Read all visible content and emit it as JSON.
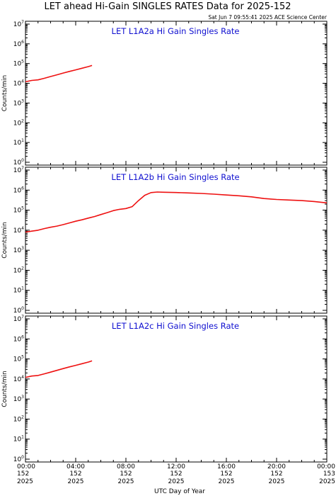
{
  "title": "LET ahead Hi-Gain SINGLES RATES Data for 2025-152",
  "timestamp": "Sat Jun  7 09:55:41 2025 ACE Science Center",
  "x_axis_label": "UTC Day of Year",
  "colors": {
    "series": "#ee1111",
    "panel_title": "#1010d0",
    "axes": "#000000"
  },
  "chart_data": [
    {
      "type": "line",
      "title": "LET L1A2a Hi Gain Singles Rate",
      "ylabel": "Counts/min",
      "yscale": "log",
      "ylim": [
        1,
        10000000
      ],
      "xlim": [
        0,
        24
      ],
      "x_unit": "hours UTC",
      "series": [
        {
          "x": [
            0.0,
            0.5,
            1.0,
            1.5,
            2.0,
            2.5,
            3.0,
            3.5,
            4.0,
            4.5,
            5.0,
            5.3
          ],
          "values": [
            12000,
            14000,
            15000,
            18000,
            22000,
            27000,
            33000,
            40000,
            48000,
            58000,
            70000,
            80000
          ]
        }
      ]
    },
    {
      "type": "line",
      "title": "LET L1A2b Hi Gain Singles Rate",
      "ylabel": "Counts/min",
      "yscale": "log",
      "ylim": [
        1,
        10000000
      ],
      "xlim": [
        0,
        24
      ],
      "x_unit": "hours UTC",
      "series": [
        {
          "x": [
            0.0,
            0.5,
            1.0,
            1.5,
            2.0,
            2.5,
            3.0,
            3.5,
            4.0,
            4.5,
            5.0,
            5.5,
            6.0,
            6.5,
            7.0,
            7.5,
            8.0,
            8.5,
            9.0,
            9.5,
            10.0,
            10.5,
            11.0,
            12.0,
            13.0,
            14.0,
            15.0,
            16.0,
            17.0,
            18.0,
            19.0,
            20.0,
            21.0,
            22.0,
            23.0,
            24.0
          ],
          "values": [
            8000,
            9000,
            10000,
            12000,
            14000,
            16000,
            19000,
            23000,
            28000,
            33000,
            40000,
            48000,
            60000,
            75000,
            95000,
            110000,
            120000,
            150000,
            300000,
            550000,
            750000,
            800000,
            780000,
            760000,
            720000,
            680000,
            630000,
            570000,
            520000,
            460000,
            380000,
            340000,
            320000,
            300000,
            270000,
            230000
          ]
        }
      ]
    },
    {
      "type": "line",
      "title": "LET L1A2c Hi Gain Singles Rate",
      "ylabel": "Counts/min",
      "yscale": "log",
      "ylim": [
        1,
        10000000
      ],
      "xlim": [
        0,
        24
      ],
      "x_unit": "hours UTC",
      "series": [
        {
          "x": [
            0.0,
            0.5,
            1.0,
            1.5,
            2.0,
            2.5,
            3.0,
            3.5,
            4.0,
            4.5,
            5.0,
            5.3
          ],
          "values": [
            12000,
            14000,
            15000,
            18000,
            22000,
            27000,
            33000,
            40000,
            48000,
            58000,
            70000,
            80000
          ]
        }
      ]
    }
  ],
  "x_ticks": [
    {
      "hour": 0,
      "time": "00:00",
      "doy": "152",
      "year": "2025"
    },
    {
      "hour": 4,
      "time": "04:00",
      "doy": "152",
      "year": "2025"
    },
    {
      "hour": 8,
      "time": "08:00",
      "doy": "152",
      "year": "2025"
    },
    {
      "hour": 12,
      "time": "12:00",
      "doy": "152",
      "year": "2025"
    },
    {
      "hour": 16,
      "time": "16:00",
      "doy": "152",
      "year": "2025"
    },
    {
      "hour": 20,
      "time": "20:00",
      "doy": "152",
      "year": "2025"
    },
    {
      "hour": 24,
      "time": "00:00",
      "doy": "153",
      "year": "2025"
    }
  ],
  "y_ticks": [
    {
      "base": "10",
      "exp": "0",
      "value": 1
    },
    {
      "base": "10",
      "exp": "1",
      "value": 10
    },
    {
      "base": "10",
      "exp": "2",
      "value": 100
    },
    {
      "base": "10",
      "exp": "3",
      "value": 1000
    },
    {
      "base": "10",
      "exp": "4",
      "value": 10000
    },
    {
      "base": "10",
      "exp": "5",
      "value": 100000
    },
    {
      "base": "10",
      "exp": "6",
      "value": 1000000
    },
    {
      "base": "10",
      "exp": "7",
      "value": 10000000
    }
  ]
}
